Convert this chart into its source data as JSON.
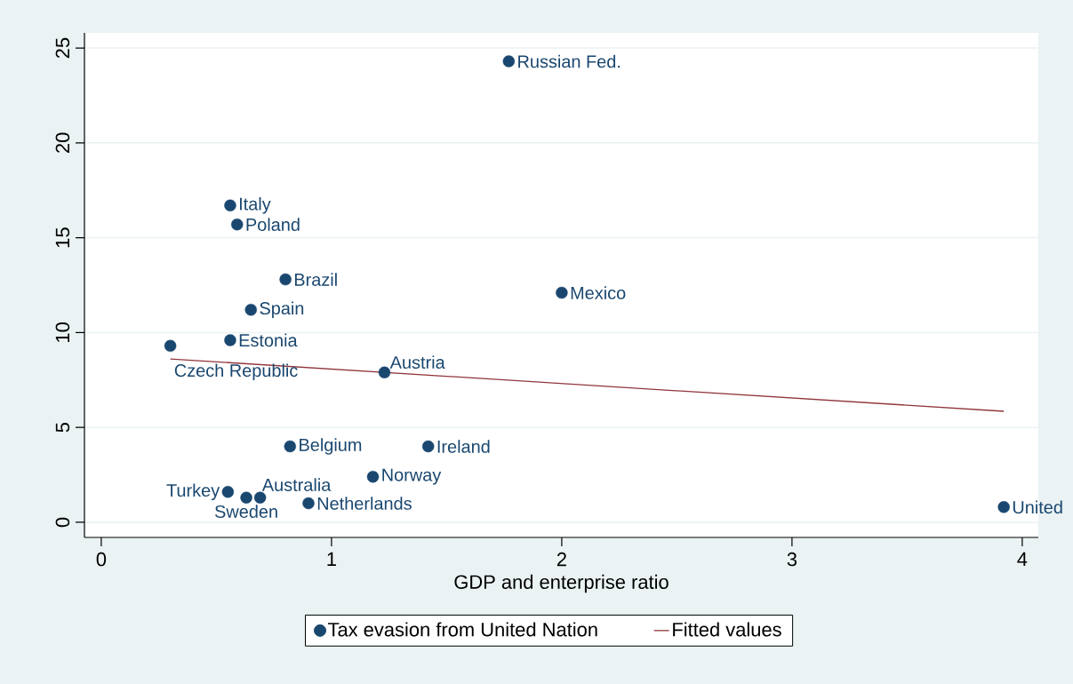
{
  "chart_data": {
    "type": "scatter",
    "xlabel": "GDP and enterprise ratio",
    "xlim": [
      -0.073,
      4.07
    ],
    "ylim": [
      -0.8,
      25.8
    ],
    "xticks": [
      0,
      1,
      2,
      3,
      4
    ],
    "yticks": [
      0,
      5,
      10,
      15,
      20,
      25
    ],
    "grid": "y",
    "legend": "bottom",
    "marker": "circle",
    "series": [
      {
        "name": "Tax evasion from United Nation",
        "type": "scatter",
        "color": "#1a476f",
        "x": [
          1.77,
          0.56,
          0.59,
          0.8,
          2.0,
          0.65,
          0.56,
          0.3,
          1.23,
          0.82,
          1.42,
          1.18,
          0.55,
          0.63,
          0.69,
          0.9,
          3.92
        ],
        "values": [
          24.3,
          16.7,
          15.7,
          12.8,
          12.1,
          11.2,
          9.6,
          9.3,
          7.9,
          4.0,
          4.0,
          2.4,
          1.6,
          1.3,
          1.3,
          1.0,
          0.8
        ]
      },
      {
        "name": "Fitted values",
        "type": "line",
        "marker": "none",
        "color": "#90353b",
        "x": [
          0.3,
          3.92
        ],
        "values": [
          8.61,
          5.85
        ]
      }
    ],
    "annotations": [
      {
        "text": "Russian Fed.",
        "x": 1.77,
        "y": 24.3
      },
      {
        "text": "Italy",
        "x": 0.56,
        "y": 16.7
      },
      {
        "text": "Poland",
        "x": 0.59,
        "y": 15.7
      },
      {
        "text": "Brazil",
        "x": 0.8,
        "y": 12.8
      },
      {
        "text": "Mexico",
        "x": 2.0,
        "y": 12.1
      },
      {
        "text": "Spain",
        "x": 0.65,
        "y": 11.2
      },
      {
        "text": "Estonia",
        "x": 0.56,
        "y": 9.6
      },
      {
        "text": "Czech Republic",
        "x": 0.3,
        "y": 9.3
      },
      {
        "text": "Austria",
        "x": 1.23,
        "y": 7.9
      },
      {
        "text": "Belgium",
        "x": 0.82,
        "y": 4.0
      },
      {
        "text": "Ireland",
        "x": 1.42,
        "y": 4.0
      },
      {
        "text": "Norway",
        "x": 1.18,
        "y": 2.4
      },
      {
        "text": "Turkey",
        "x": 0.55,
        "y": 1.6
      },
      {
        "text": "Sweden",
        "x": 0.63,
        "y": 1.3
      },
      {
        "text": "Australia",
        "x": 0.69,
        "y": 1.3
      },
      {
        "text": "Netherlands",
        "x": 0.9,
        "y": 1.0
      },
      {
        "text": "United",
        "x": 3.92,
        "y": 0.8
      }
    ]
  }
}
